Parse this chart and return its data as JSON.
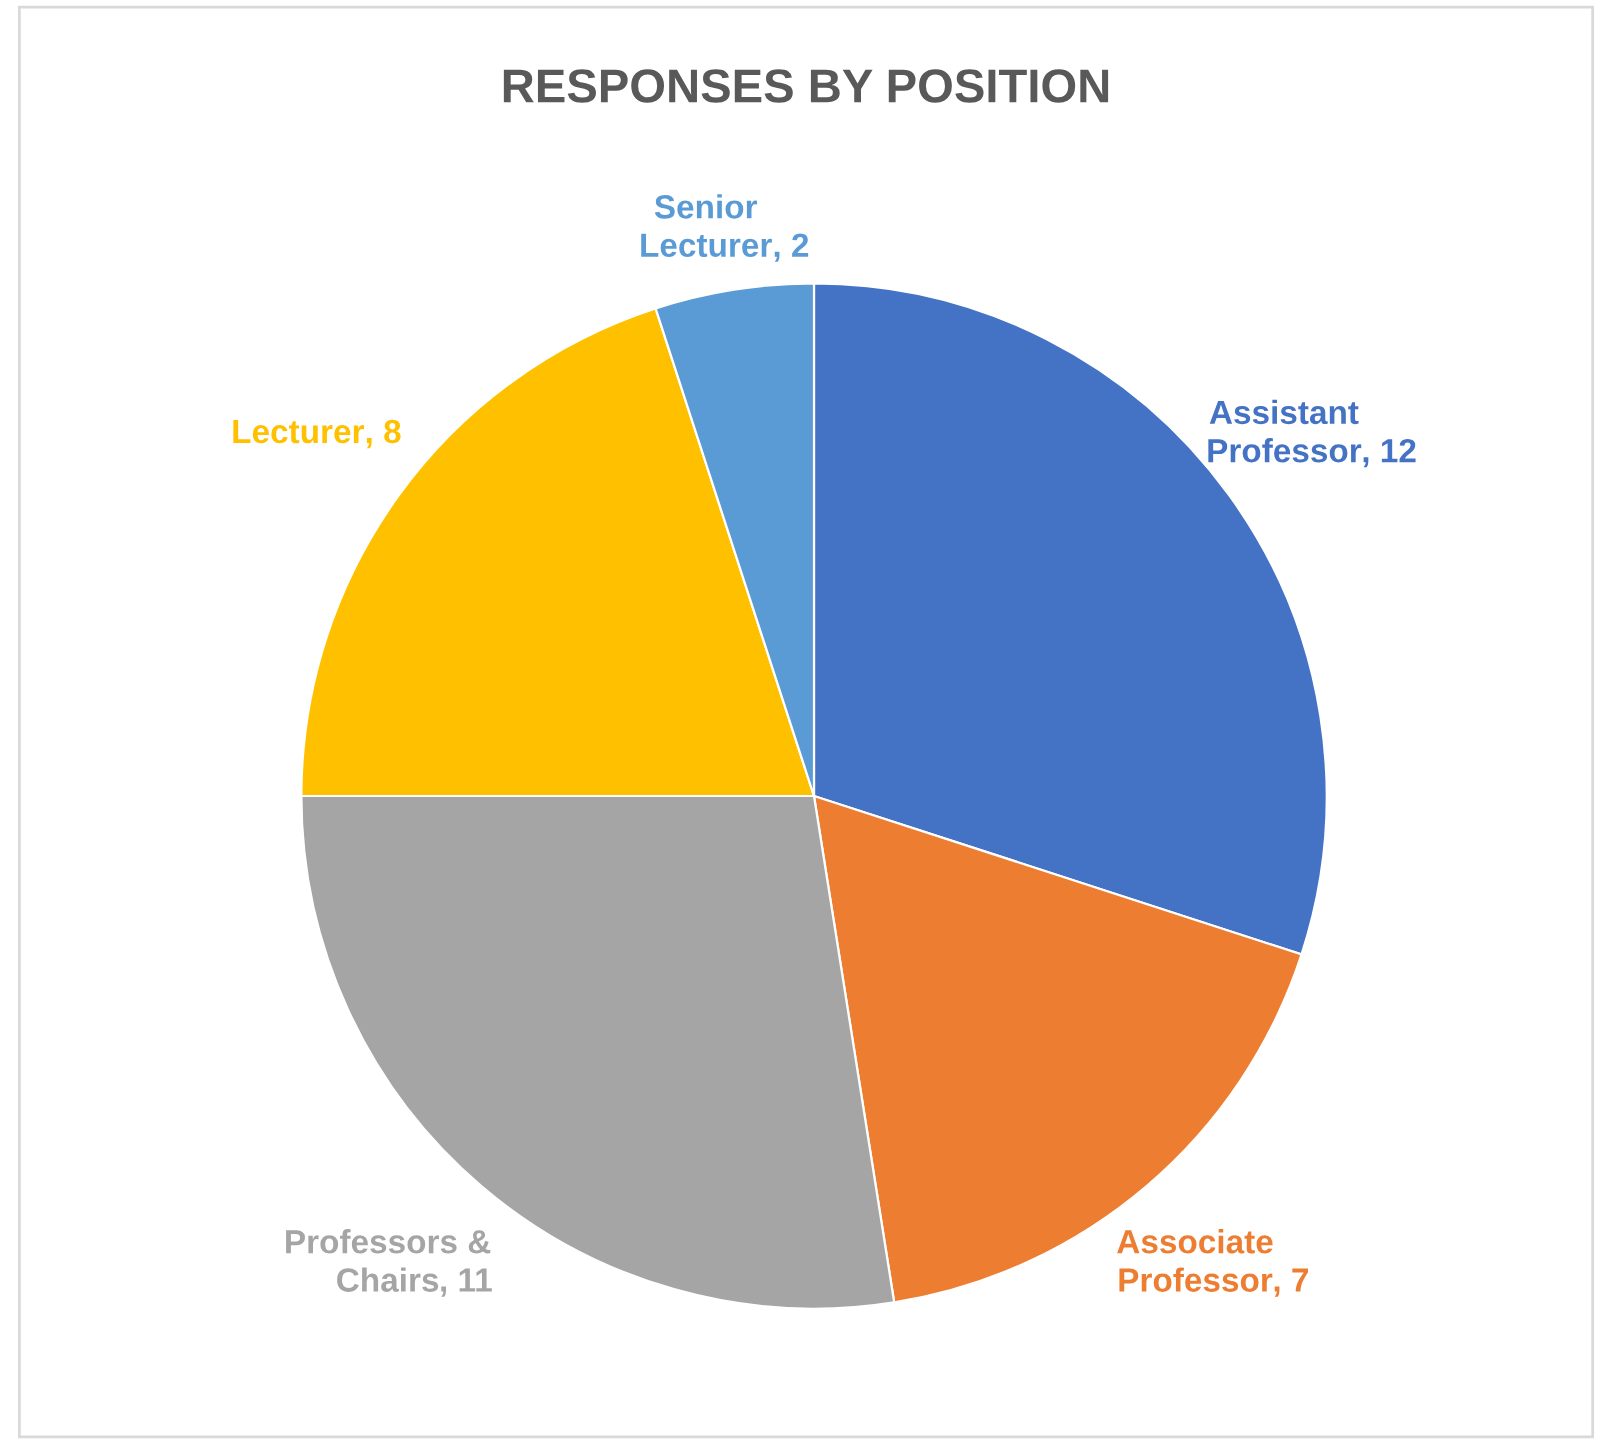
{
  "chart_data": {
    "type": "pie",
    "title": "RESPONSES BY POSITION",
    "categories": [
      "Assistant Professor",
      "Associate Professor",
      "Professors & Chairs",
      "Lecturer",
      "Senior Lecturer"
    ],
    "values": [
      12,
      7,
      11,
      8,
      2
    ],
    "colors": [
      "#4472c4",
      "#ed7d31",
      "#a5a5a5",
      "#ffc000",
      "#5b9bd5"
    ],
    "value_labels": [
      ", 12",
      ", 7",
      ", 11",
      ", 8",
      ", 2"
    ],
    "legend": false
  }
}
